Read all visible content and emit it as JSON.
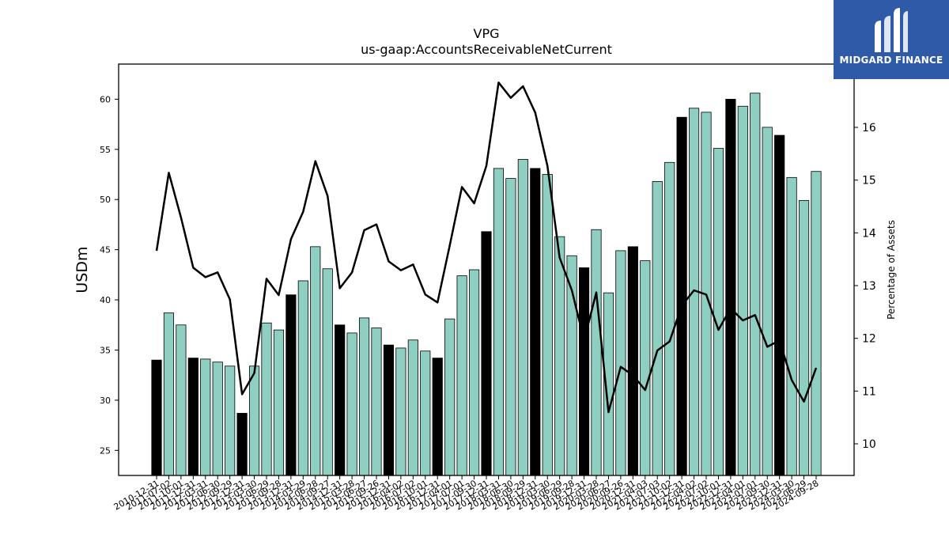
{
  "brand": {
    "name": "MIDGARD FINANCE",
    "background": "#2f5aa8"
  },
  "chart_data": {
    "type": "bar",
    "title": "VPG",
    "subtitle": "us-gaap:AccountsReceivableNetCurrent",
    "ylabel": "USDm",
    "y2label": "Percentage of Assets",
    "ylim": [
      22.5,
      63.5
    ],
    "y2lim": [
      9.4,
      17.2
    ],
    "yticks": [
      25,
      30,
      35,
      40,
      45,
      50,
      55,
      60
    ],
    "y2ticks": [
      10,
      11,
      12,
      13,
      14,
      15,
      16
    ],
    "grid": false,
    "colors": {
      "annual": "#000000",
      "quarterly": "#8ecfc2",
      "line": "#000000"
    },
    "categories": [
      "2010-12-31",
      "2011-07-02",
      "2011-10-01",
      "2011-12-31",
      "2012-03-31",
      "2012-06-30",
      "2012-09-29",
      "2012-12-31",
      "2013-03-30",
      "2013-06-29",
      "2013-09-28",
      "2013-12-31",
      "2014-03-29",
      "2014-06-28",
      "2014-09-27",
      "2014-12-31",
      "2015-03-28",
      "2015-06-27",
      "2015-09-26",
      "2015-12-31",
      "2016-04-02",
      "2016-07-02",
      "2016-10-01",
      "2016-12-31",
      "2017-04-01",
      "2017-07-01",
      "2017-09-30",
      "2017-12-31",
      "2018-03-31",
      "2018-06-30",
      "2018-09-29",
      "2018-12-31",
      "2019-03-30",
      "2019-06-29",
      "2019-09-28",
      "2019-12-31",
      "2020-03-28",
      "2020-06-27",
      "2020-09-26",
      "2020-12-31",
      "2021-04-03",
      "2021-07-03",
      "2021-10-02",
      "2021-12-31",
      "2022-04-02",
      "2022-07-02",
      "2022-10-01",
      "2022-12-31",
      "2023-04-01",
      "2023-07-01",
      "2023-09-30",
      "2023-12-31",
      "2024-03-30",
      "2024-06-29",
      "2024-09-28"
    ],
    "x_tick_labels": [
      "2010-12-31",
      "2011-07-02",
      "2011-10-01",
      "2011-12-31",
      "2012-03-31",
      "2012-06-30",
      "2012-09-29",
      "2012-12-31",
      "2013-03-30",
      "2013-06-29",
      "2013-09-28",
      "2013-12-31",
      "2014-03-29",
      "2014-06-28",
      "2014-09-27",
      "2014-12-31",
      "2015-03-28",
      "2015-06-27",
      "2015-09-26",
      "2015-12-31",
      "2016-04-02",
      "2016-07-02",
      "2016-10-01",
      "2016-12-31",
      "2017-04-01",
      "2017-07-01",
      "2017-09-30",
      "2017-12-31",
      "2018-03-31",
      "2018-06-30",
      "2018-09-29",
      "2018-12-31",
      "2019-03-30",
      "2019-06-29",
      "2019-09-28",
      "2019-12-31",
      "2020-03-28",
      "2020-06-27",
      "2020-09-26",
      "2020-12-31",
      "2021-04-03",
      "2021-07-03",
      "2021-10-02",
      "2021-12-31",
      "2022-04-02",
      "2022-07-02",
      "2022-10-01",
      "2022-12-31",
      "2023-04-01",
      "2023-07-01",
      "2023-09-30",
      "2023-12-31",
      "2024-03-30",
      "2024-06-29",
      "2024-09-28"
    ],
    "bar_values": [
      34.0,
      38.7,
      37.5,
      34.2,
      34.1,
      33.8,
      33.4,
      28.7,
      33.4,
      37.7,
      37.0,
      40.5,
      41.9,
      45.3,
      43.1,
      37.5,
      36.7,
      38.2,
      37.2,
      35.5,
      35.2,
      36.0,
      34.9,
      34.2,
      38.1,
      42.4,
      43.0,
      46.8,
      53.1,
      52.1,
      54.0,
      53.1,
      52.5,
      46.3,
      44.4,
      43.2,
      47.0,
      40.7,
      44.9,
      45.3,
      43.9,
      51.8,
      53.7,
      58.2,
      59.1,
      58.7,
      55.1,
      60.0,
      59.3,
      60.6,
      57.2,
      56.4,
      52.2,
      49.9,
      52.8
    ],
    "bar_kind": [
      "annual",
      "quarterly",
      "quarterly",
      "annual",
      "quarterly",
      "quarterly",
      "quarterly",
      "annual",
      "quarterly",
      "quarterly",
      "quarterly",
      "annual",
      "quarterly",
      "quarterly",
      "quarterly",
      "annual",
      "quarterly",
      "quarterly",
      "quarterly",
      "annual",
      "quarterly",
      "quarterly",
      "quarterly",
      "annual",
      "quarterly",
      "quarterly",
      "quarterly",
      "annual",
      "quarterly",
      "quarterly",
      "quarterly",
      "annual",
      "quarterly",
      "quarterly",
      "quarterly",
      "annual",
      "quarterly",
      "quarterly",
      "quarterly",
      "annual",
      "quarterly",
      "quarterly",
      "quarterly",
      "annual",
      "quarterly",
      "quarterly",
      "quarterly",
      "annual",
      "quarterly",
      "quarterly",
      "quarterly",
      "annual",
      "quarterly",
      "quarterly",
      "quarterly"
    ],
    "line_values": [
      13.66,
      15.14,
      14.29,
      13.34,
      13.16,
      13.25,
      12.74,
      10.94,
      11.34,
      13.13,
      12.82,
      13.88,
      14.4,
      15.36,
      14.7,
      12.95,
      13.25,
      14.05,
      14.16,
      13.46,
      13.29,
      13.4,
      12.83,
      12.68,
      13.76,
      14.87,
      14.56,
      15.27,
      16.85,
      16.56,
      16.78,
      16.28,
      15.27,
      13.53,
      12.91,
      11.96,
      12.87,
      10.6,
      11.46,
      11.3,
      11.02,
      11.77,
      11.94,
      12.62,
      12.91,
      12.83,
      12.16,
      12.57,
      12.34,
      12.44,
      11.84,
      11.96,
      11.21,
      10.8,
      11.44
    ]
  }
}
